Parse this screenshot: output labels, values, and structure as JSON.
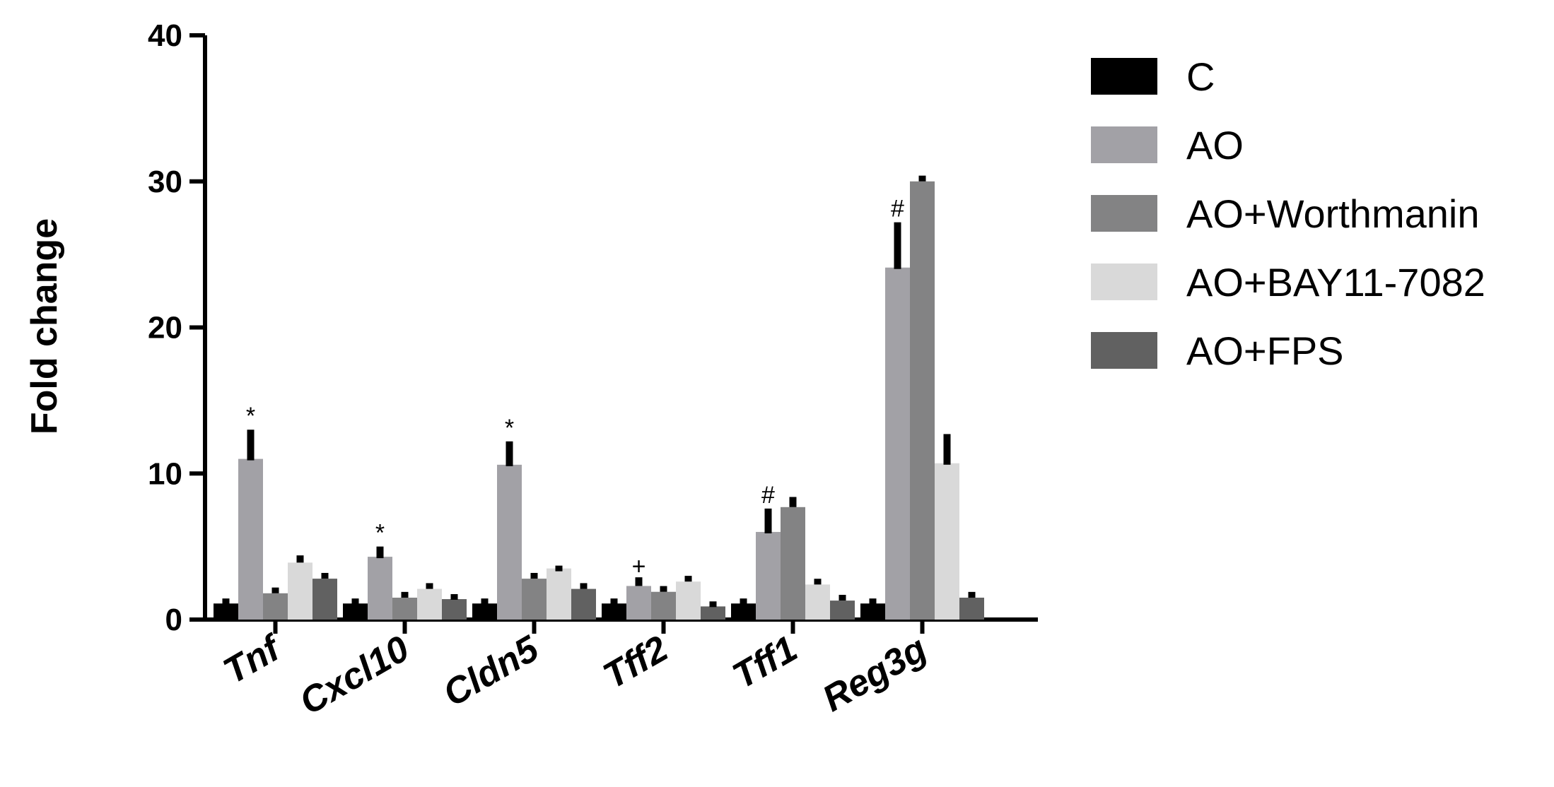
{
  "chart_data": {
    "type": "bar",
    "title": "",
    "xlabel": "",
    "ylabel": "Fold change",
    "ylim": [
      0,
      40
    ],
    "yticks": [
      "0",
      "10",
      "20",
      "30",
      "40"
    ],
    "grid": false,
    "legend_position": "right",
    "categories": [
      "Tnf",
      "Cxcl10",
      "Cldn5",
      "Tff2",
      "Tff1",
      "Reg3g"
    ],
    "series": [
      {
        "name": "C",
        "color": "#000000",
        "values": [
          1.1,
          1.1,
          1.1,
          1.1,
          1.1,
          1.1
        ],
        "errors": [
          0.15,
          0.15,
          0.15,
          0.15,
          0.15,
          0.15
        ]
      },
      {
        "name": "AO",
        "color": "#a2a1a6",
        "values": [
          11.0,
          4.3,
          10.6,
          2.3,
          6.0,
          24.1
        ],
        "errors": [
          2.0,
          0.7,
          1.6,
          0.4,
          1.6,
          3.1
        ]
      },
      {
        "name": "AO+Worthmanin",
        "color": "#838384",
        "values": [
          1.8,
          1.5,
          2.8,
          1.9,
          7.7,
          30.0
        ],
        "errors": [
          0.2,
          0.2,
          0.2,
          0.2,
          0.5,
          0.2
        ]
      },
      {
        "name": "AO+BAY11-7082",
        "color": "#d9d9d9",
        "values": [
          3.9,
          2.1,
          3.5,
          2.6,
          2.4,
          10.7
        ],
        "errors": [
          0.3,
          0.2,
          0.0,
          0.2,
          0.2,
          2.0
        ]
      },
      {
        "name": "AO+FPS",
        "color": "#616161",
        "values": [
          2.8,
          1.4,
          2.1,
          0.9,
          1.3,
          1.5
        ],
        "errors": [
          0.2,
          0.15,
          0.2,
          0.15,
          0.2,
          0.2
        ]
      }
    ],
    "annotations": [
      {
        "category": "Tnf",
        "series": "AO",
        "text": "*"
      },
      {
        "category": "Cxcl10",
        "series": "AO",
        "text": "*"
      },
      {
        "category": "Cldn5",
        "series": "AO",
        "text": "*"
      },
      {
        "category": "Tff2",
        "series": "AO",
        "text": "+"
      },
      {
        "category": "Tff1",
        "series": "AO",
        "text": "#"
      },
      {
        "category": "Reg3g",
        "series": "AO",
        "text": "#"
      }
    ]
  }
}
